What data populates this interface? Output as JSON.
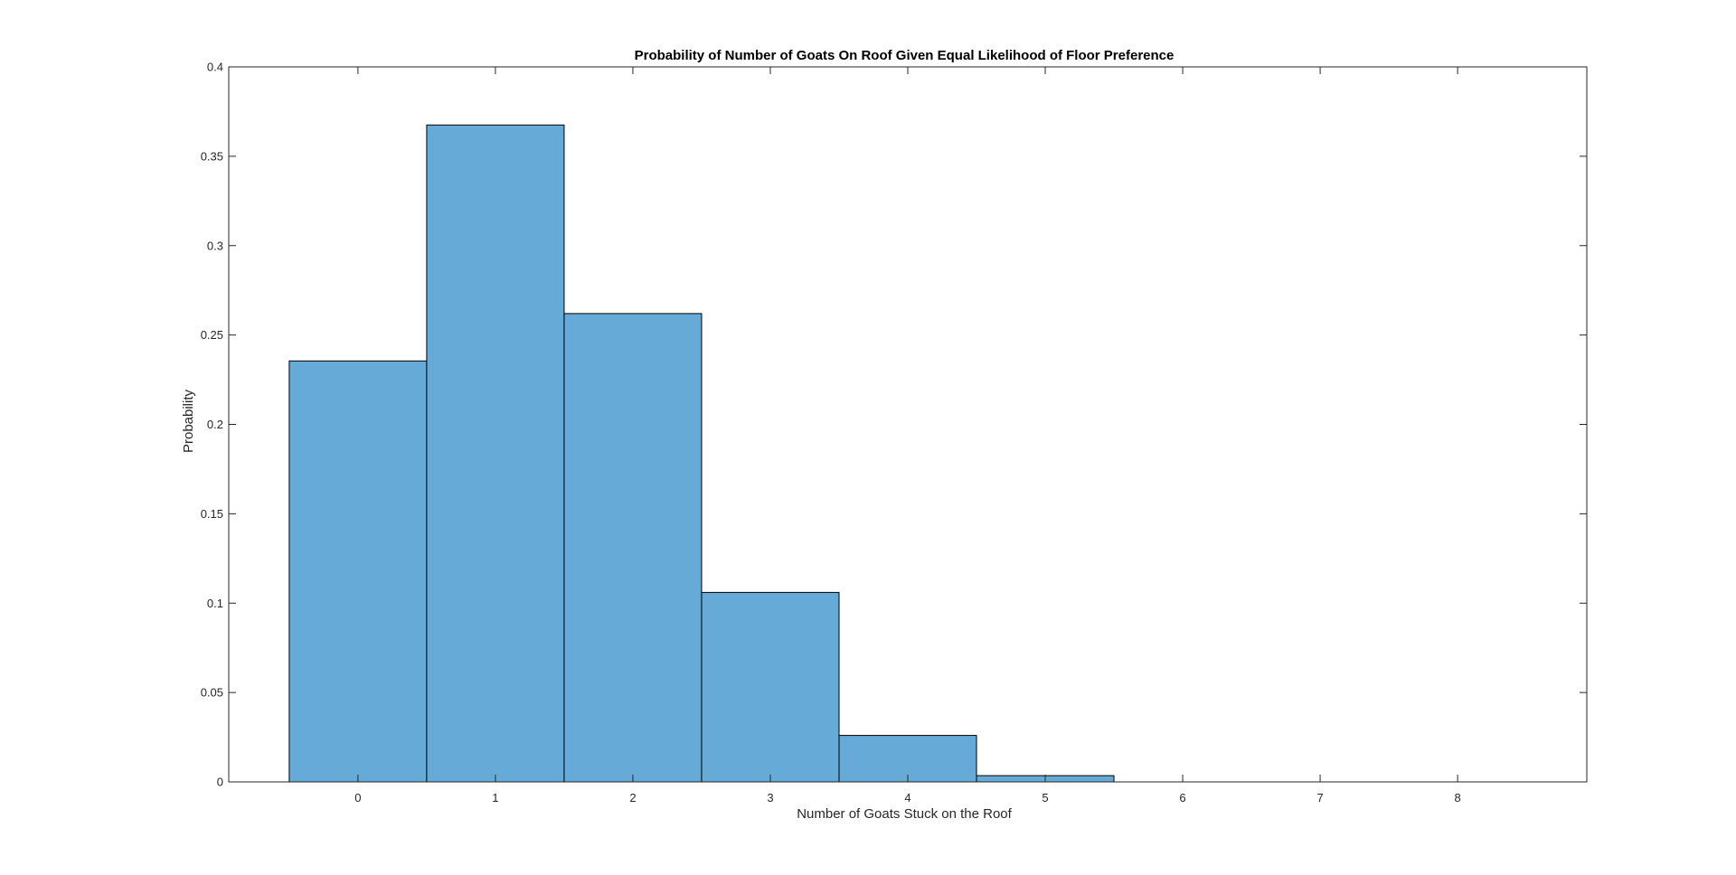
{
  "chart_data": {
    "type": "bar",
    "title": "Probability of Number of Goats On Roof Given Equal Likelihood of Floor Preference",
    "xlabel": "Number of Goats Stuck on the Roof",
    "ylabel": "Probability",
    "categories": [
      "0",
      "1",
      "2",
      "3",
      "4",
      "5",
      "6",
      "7",
      "8"
    ],
    "x": [
      0,
      1,
      2,
      3,
      4,
      5,
      6,
      7,
      8
    ],
    "values": [
      0.2355,
      0.3675,
      0.262,
      0.106,
      0.026,
      0.0035,
      0,
      0,
      0
    ],
    "xlim": [
      -0.94,
      8.94
    ],
    "ylim": [
      0,
      0.4
    ],
    "xticks": [
      0,
      1,
      2,
      3,
      4,
      5,
      6,
      7,
      8
    ],
    "yticks": [
      0,
      0.05,
      0.1,
      0.15,
      0.2,
      0.25,
      0.3,
      0.35,
      0.4
    ],
    "ytick_labels": [
      "0",
      "0.05",
      "0.1",
      "0.15",
      "0.2",
      "0.25",
      "0.3",
      "0.35",
      "0.4"
    ],
    "grid": false,
    "legend": "none",
    "bar_width": 1,
    "colors": {
      "bar_fill": "#66aad8",
      "bar_edge": "#000000",
      "axes": "#262626"
    }
  }
}
